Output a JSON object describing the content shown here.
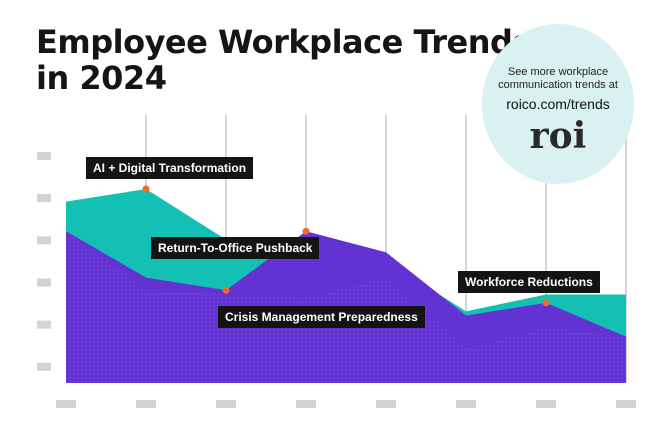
{
  "title_lines": [
    "Employee Workplace Trends",
    "in 2024"
  ],
  "promo": {
    "text_lines": [
      "See more workplace",
      "communication trends at"
    ],
    "link": "roico.com/trends",
    "logo": "roi"
  },
  "colors": {
    "teal": "#13c0b3",
    "purple": "#6233d2",
    "marker": "#f26a2a",
    "grid": "#d6d6d6",
    "tick": "#d3d3d3",
    "callout_bg": "#141414"
  },
  "chart_data": {
    "type": "area",
    "title": "Employee Workplace Trends in 2024",
    "x": [
      1,
      2,
      3,
      4,
      5,
      6,
      7,
      8
    ],
    "tick_labels_visible": false,
    "series": [
      {
        "values": [
          4.3,
          4.6,
          3.4,
          2.6,
          2.9,
          1.7,
          2.1,
          2.1
        ]
      },
      {
        "values": [
          3.6,
          2.5,
          2.2,
          3.6,
          3.1,
          1.6,
          1.9,
          1.1
        ]
      },
      {
        "values": [
          3.6,
          2.2,
          2.1,
          2.0,
          2.5,
          0.8,
          1.3,
          1.1
        ]
      }
    ],
    "annotations": [
      {
        "label": "AI + Digital Transformation",
        "x": 2,
        "y": 4.6
      },
      {
        "label": "Return-To-Office Pushback",
        "x": 4,
        "y": 3.6
      },
      {
        "label": "Crisis Management Preparedness",
        "x": 3,
        "y": 2.2
      },
      {
        "label": "Workforce Reductions",
        "x": 7,
        "y": 1.9
      }
    ],
    "ylim": [
      0,
      6
    ],
    "grid": true
  }
}
